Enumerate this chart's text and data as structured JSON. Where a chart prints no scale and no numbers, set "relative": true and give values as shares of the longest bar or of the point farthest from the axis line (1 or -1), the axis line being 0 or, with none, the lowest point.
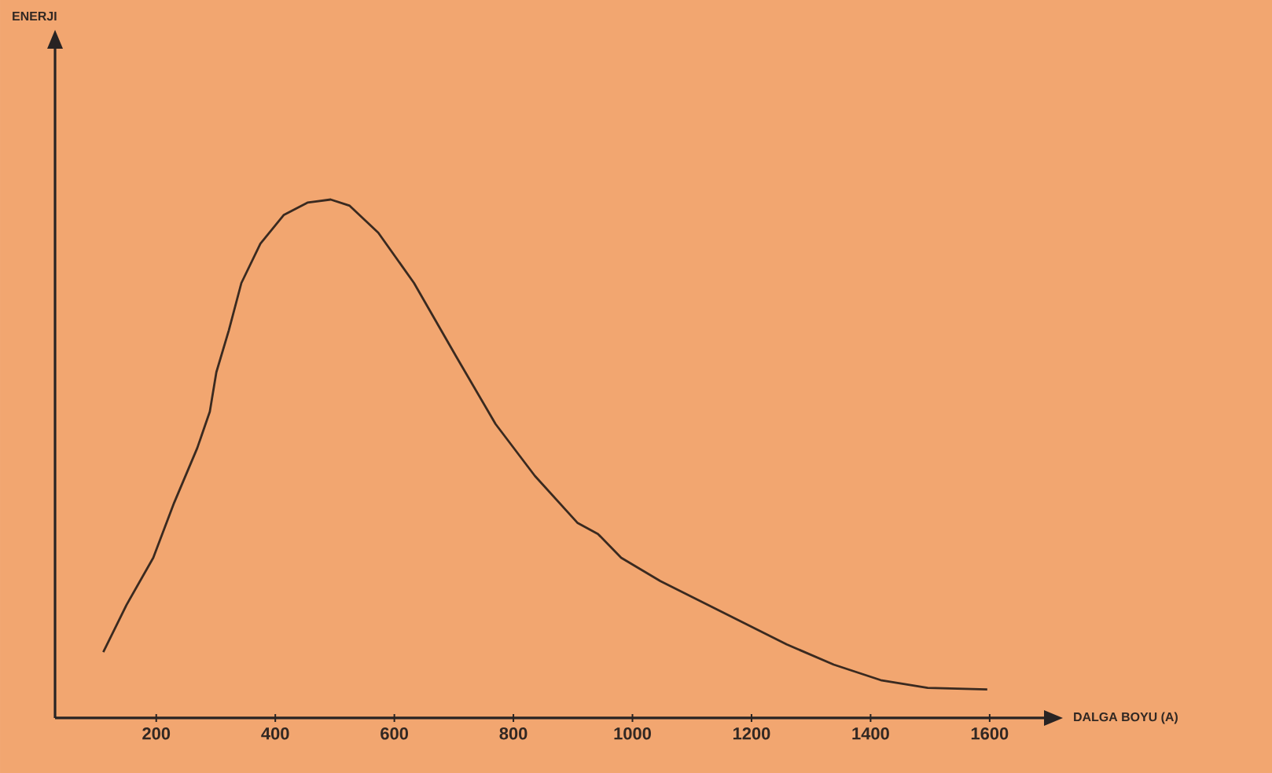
{
  "chart_data": {
    "type": "line",
    "relative": true,
    "xlabel": "DALGA BOYU (A)",
    "annotations": [
      "ENERJI"
    ],
    "xlim": [
      30,
      1694
    ],
    "xticks": [
      200,
      400,
      600,
      800,
      1000,
      1200,
      1400,
      1600
    ],
    "grid": false,
    "marker": "none",
    "line_style": "solid",
    "series": [
      {
        "color": "#3a2a20",
        "x": [
          111,
          150,
          195,
          230,
          269,
          290,
          301,
          322,
          343,
          375,
          414,
          454,
          493,
          525,
          573,
          633,
          704,
          770,
          836,
          908,
          942,
          981,
          1047,
          1153,
          1259,
          1338,
          1417,
          1496,
          1596
        ],
        "values": [
          0.127,
          0.218,
          0.309,
          0.415,
          0.521,
          0.591,
          0.667,
          0.748,
          0.839,
          0.915,
          0.97,
          0.994,
          1,
          0.988,
          0.936,
          0.839,
          0.697,
          0.567,
          0.467,
          0.376,
          0.355,
          0.309,
          0.264,
          0.203,
          0.142,
          0.103,
          0.073,
          0.058,
          0.055
        ]
      }
    ]
  }
}
